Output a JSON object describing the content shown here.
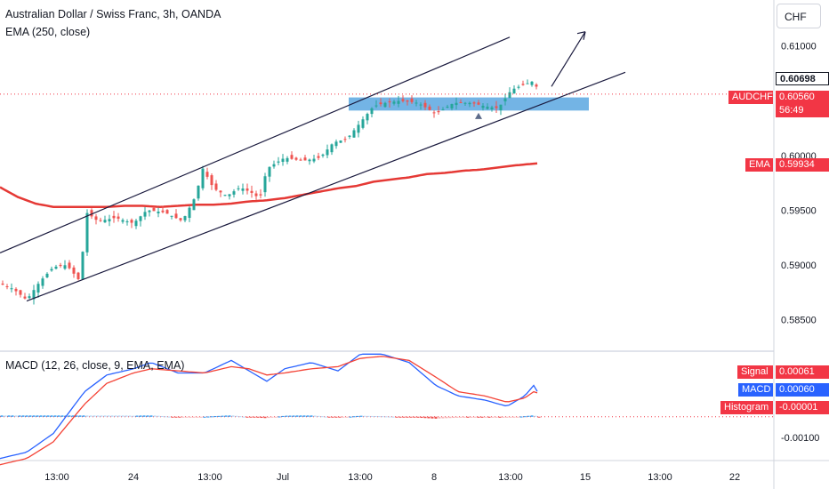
{
  "main_pane": {
    "title": "Australian Dollar / Swiss Franc, 3h, OANDA",
    "indicator": "EMA (250, close)",
    "currency_button": "CHF",
    "price_ticks": [
      "0.61000",
      "0.60000",
      "0.59500",
      "0.59000",
      "0.58500"
    ],
    "last_price_tag": {
      "label": "AUDCHF",
      "value": "0.60560",
      "countdown": "56:49",
      "color": "#f23645"
    },
    "high_price_tag": {
      "value": "0.60698"
    },
    "ema_tag": {
      "label": "EMA",
      "value": "0.59934",
      "color": "#f23645"
    }
  },
  "macd_pane": {
    "title": "MACD (12, 26, close, 9, EMA, EMA)",
    "tags": [
      {
        "label": "Signal",
        "value": "0.00061",
        "color": "#f23645"
      },
      {
        "label": "MACD",
        "value": "0.00060",
        "color": "#2962ff"
      },
      {
        "label": "Histogram",
        "value": "-0.00001",
        "color": "#f23645"
      }
    ],
    "tick": "-0.00100"
  },
  "time_axis": {
    "labels": [
      "13:00",
      "24",
      "13:00",
      "Jul",
      "13:00",
      "8",
      "13:00",
      "15",
      "13:00",
      "22"
    ]
  },
  "colors": {
    "up": "#26a69a",
    "down": "#ef5350",
    "ema": "#e53935",
    "channel": "#1a1a3e",
    "zone": "#5aa7e0",
    "macd": "#2962ff",
    "signal": "#f44336"
  },
  "chart_data": {
    "type": "line",
    "title": "Australian Dollar / Swiss Franc, 3h, OANDA",
    "price_range": [
      0.5822,
      0.6142
    ],
    "x": [
      "13:00",
      "24",
      "13:00",
      "Jul",
      "13:00",
      "8",
      "13:00",
      "15",
      "13:00",
      "22"
    ],
    "series": [
      {
        "name": "EMA (250, close)",
        "points_time_price": [
          [
            0,
            0.5971
          ],
          [
            20,
            0.5962
          ],
          [
            40,
            0.5956
          ],
          [
            60,
            0.5953
          ],
          [
            80,
            0.5953
          ],
          [
            100,
            0.5953
          ],
          [
            120,
            0.5953
          ],
          [
            140,
            0.5954
          ],
          [
            160,
            0.5954
          ],
          [
            180,
            0.5953
          ],
          [
            200,
            0.5954
          ],
          [
            220,
            0.5955
          ],
          [
            240,
            0.5955
          ],
          [
            260,
            0.5956
          ],
          [
            280,
            0.5958
          ],
          [
            300,
            0.5959
          ],
          [
            320,
            0.5961
          ],
          [
            340,
            0.5964
          ],
          [
            360,
            0.5967
          ],
          [
            380,
            0.597
          ],
          [
            400,
            0.5972
          ],
          [
            420,
            0.5976
          ],
          [
            440,
            0.5978
          ],
          [
            460,
            0.598
          ],
          [
            480,
            0.5983
          ],
          [
            500,
            0.5984
          ],
          [
            520,
            0.5986
          ],
          [
            540,
            0.5987
          ],
          [
            560,
            0.5989
          ],
          [
            580,
            0.5991
          ],
          [
            607,
            0.5993
          ]
        ]
      },
      {
        "name": "price (approx. close path)",
        "points_time_price": [
          [
            0,
            0.5883
          ],
          [
            15,
            0.5878
          ],
          [
            30,
            0.5868
          ],
          [
            45,
            0.5885
          ],
          [
            60,
            0.5898
          ],
          [
            75,
            0.59
          ],
          [
            90,
            0.5885
          ],
          [
            97,
            0.5948
          ],
          [
            110,
            0.594
          ],
          [
            130,
            0.5943
          ],
          [
            150,
            0.5938
          ],
          [
            165,
            0.595
          ],
          [
            185,
            0.5948
          ],
          [
            205,
            0.594
          ],
          [
            220,
            0.5963
          ],
          [
            228,
            0.5988
          ],
          [
            240,
            0.597
          ],
          [
            255,
            0.5963
          ],
          [
            270,
            0.5971
          ],
          [
            285,
            0.5965
          ],
          [
            292,
            0.596
          ],
          [
            300,
            0.5988
          ],
          [
            320,
            0.5998
          ],
          [
            340,
            0.5995
          ],
          [
            360,
            0.5998
          ],
          [
            375,
            0.6012
          ],
          [
            390,
            0.6015
          ],
          [
            405,
            0.603
          ],
          [
            420,
            0.6045
          ],
          [
            433,
            0.6048
          ],
          [
            450,
            0.605
          ],
          [
            470,
            0.6048
          ],
          [
            490,
            0.6038
          ],
          [
            510,
            0.6048
          ],
          [
            530,
            0.6048
          ],
          [
            545,
            0.6045
          ],
          [
            560,
            0.6043
          ],
          [
            575,
            0.606
          ],
          [
            590,
            0.6065
          ],
          [
            600,
            0.6068
          ],
          [
            607,
            0.6056
          ]
        ]
      }
    ],
    "annotations": {
      "channel_upper": [
        [
          0,
          0.5911
        ],
        [
          573,
          0.6108
        ]
      ],
      "channel_lower": [
        [
          30,
          0.5867
        ],
        [
          703,
          0.6076
        ]
      ],
      "support_zone": {
        "time_range": [
          392,
          662
        ],
        "price_range": [
          0.6041,
          0.6053
        ]
      },
      "arrow_line": [
        [
          620,
          0.6063
        ],
        [
          658,
          0.6113
        ]
      ]
    },
    "macd_range": [
      -0.0021,
      0.0031
    ],
    "macd_histogram_range": [
      -0.00035,
      0.00015
    ]
  }
}
